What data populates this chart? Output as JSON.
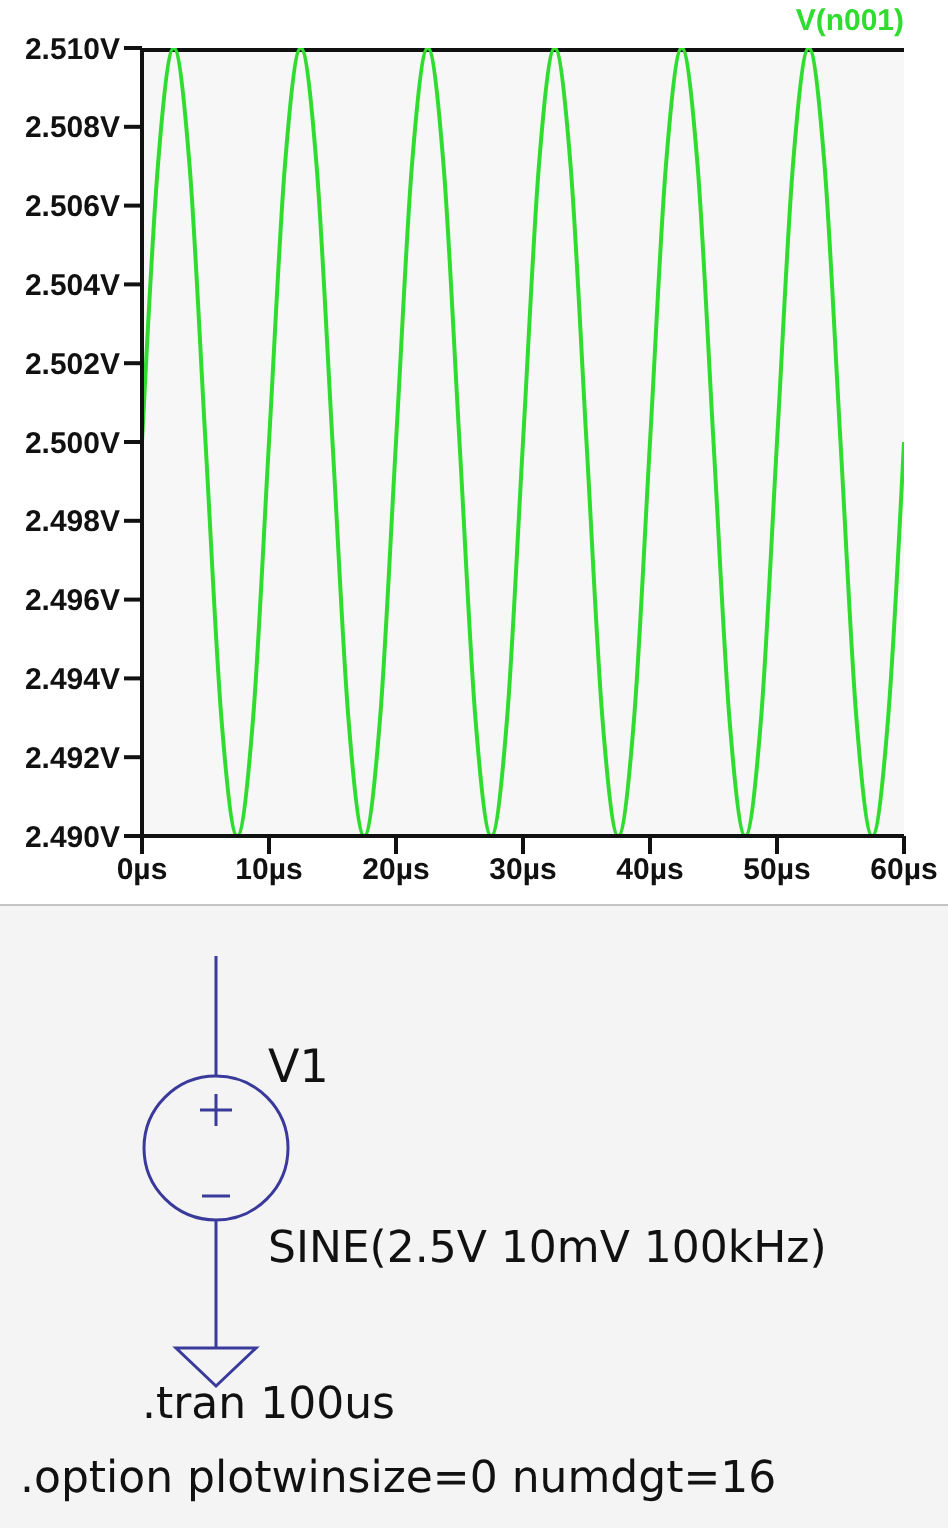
{
  "chart_data": {
    "type": "line",
    "x": [
      0,
      1.25,
      2.5,
      3.75,
      5,
      6.25,
      7.5,
      8.75,
      10,
      11.25,
      12.5,
      13.75,
      15,
      16.25,
      17.5,
      18.75,
      20,
      21.25,
      22.5,
      23.75,
      25,
      26.25,
      27.5,
      28.75,
      30,
      31.25,
      32.5,
      33.75,
      35,
      36.25,
      37.5,
      38.75,
      40,
      41.25,
      42.5,
      43.75,
      45,
      46.25,
      47.5,
      48.75,
      50,
      51.25,
      52.5,
      53.75,
      55,
      56.25,
      57.5,
      58.75,
      60
    ],
    "series": [
      {
        "name": "V(n001)",
        "color": "#2fdc2f",
        "values": [
          2.5,
          2.507,
          2.51,
          2.507,
          2.5,
          2.493,
          2.49,
          2.493,
          2.5,
          2.507,
          2.51,
          2.507,
          2.5,
          2.493,
          2.49,
          2.493,
          2.5,
          2.507,
          2.51,
          2.507,
          2.5,
          2.493,
          2.49,
          2.493,
          2.5,
          2.507,
          2.51,
          2.507,
          2.5,
          2.493,
          2.49,
          2.493,
          2.5,
          2.507,
          2.51,
          2.507,
          2.5,
          2.493,
          2.49,
          2.493,
          2.5,
          2.507,
          2.51,
          2.507,
          2.5,
          2.493,
          2.49,
          2.493,
          2.5
        ]
      }
    ],
    "xlim": [
      0,
      60
    ],
    "xticks": [
      {
        "value": 0,
        "label": "0µs"
      },
      {
        "value": 10,
        "label": "10µs"
      },
      {
        "value": 20,
        "label": "20µs"
      },
      {
        "value": 30,
        "label": "30µs"
      },
      {
        "value": 40,
        "label": "40µs"
      },
      {
        "value": 50,
        "label": "50µs"
      },
      {
        "value": 60,
        "label": "60µs"
      }
    ],
    "ylim": [
      2.49,
      2.51
    ],
    "yticks": [
      {
        "value": 2.49,
        "label": "2.490V"
      },
      {
        "value": 2.492,
        "label": "2.492V"
      },
      {
        "value": 2.494,
        "label": "2.494V"
      },
      {
        "value": 2.496,
        "label": "2.496V"
      },
      {
        "value": 2.498,
        "label": "2.498V"
      },
      {
        "value": 2.5,
        "label": "2.500V"
      },
      {
        "value": 2.502,
        "label": "2.502V"
      },
      {
        "value": 2.504,
        "label": "2.504V"
      },
      {
        "value": 2.506,
        "label": "2.506V"
      },
      {
        "value": 2.508,
        "label": "2.508V"
      },
      {
        "value": 2.51,
        "label": "2.510V"
      }
    ],
    "legend": "top right",
    "annotations": [
      "V1",
      "SINE(2.5V 10mV 100kHz)",
      ".tran 100us",
      ".option plotwinsize=0 numdgt=16"
    ]
  }
}
